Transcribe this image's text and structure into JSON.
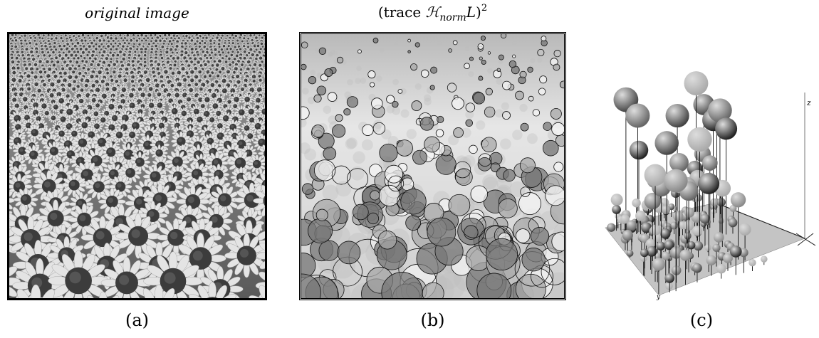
{
  "panels": [
    {
      "id": "a",
      "title": "original image",
      "caption": "(a)"
    },
    {
      "id": "b",
      "title_parts": {
        "open": "(trace ",
        "H": "ℋ",
        "sub": "norm",
        "L": "L",
        "close": ")",
        "sup": "2"
      },
      "caption": "(b)"
    },
    {
      "id": "c",
      "caption": "(c)",
      "axis_labels": {
        "z": "z",
        "x": "x",
        "y": "y"
      }
    }
  ],
  "colors": {
    "frame": "#000000",
    "background": "#ffffff"
  },
  "icons": [
    "sunflower-field-photo",
    "blob-circles-overlay",
    "3d-scale-space-plot"
  ]
}
